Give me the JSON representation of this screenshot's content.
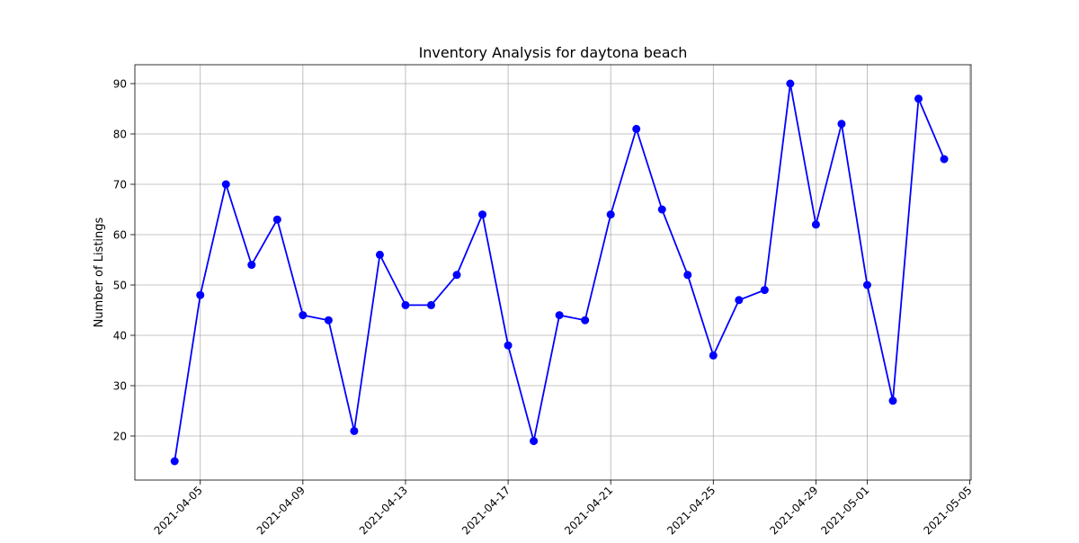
{
  "chart_data": {
    "type": "line",
    "title": "Inventory Analysis for daytona beach",
    "xlabel": "",
    "ylabel": "Number of Listings",
    "x": [
      "2021-04-04",
      "2021-04-05",
      "2021-04-06",
      "2021-04-07",
      "2021-04-08",
      "2021-04-09",
      "2021-04-10",
      "2021-04-11",
      "2021-04-12",
      "2021-04-13",
      "2021-04-14",
      "2021-04-15",
      "2021-04-16",
      "2021-04-17",
      "2021-04-18",
      "2021-04-19",
      "2021-04-20",
      "2021-04-21",
      "2021-04-22",
      "2021-04-23",
      "2021-04-24",
      "2021-04-25",
      "2021-04-26",
      "2021-04-27",
      "2021-04-28",
      "2021-04-29",
      "2021-04-30",
      "2021-05-01",
      "2021-05-02",
      "2021-05-03",
      "2021-05-04"
    ],
    "series": [
      {
        "color": "#0000ff",
        "values": [
          15,
          48,
          70,
          54,
          63,
          44,
          43,
          21,
          56,
          46,
          46,
          52,
          64,
          38,
          19,
          44,
          43,
          64,
          81,
          65,
          52,
          36,
          47,
          49,
          90,
          62,
          82,
          50,
          27,
          87,
          75
        ]
      }
    ],
    "xticks": [
      "2021-04-05",
      "2021-04-09",
      "2021-04-13",
      "2021-04-17",
      "2021-04-21",
      "2021-04-25",
      "2021-04-29",
      "2021-05-01",
      "2021-05-05"
    ],
    "yticks": [
      20,
      30,
      40,
      50,
      60,
      70,
      80,
      90
    ],
    "xlim": [
      "2021-04-02",
      "2021-05-05"
    ],
    "ylim": [
      11.25,
      93.75
    ],
    "grid": true,
    "legend": "none",
    "marker": "circle"
  }
}
